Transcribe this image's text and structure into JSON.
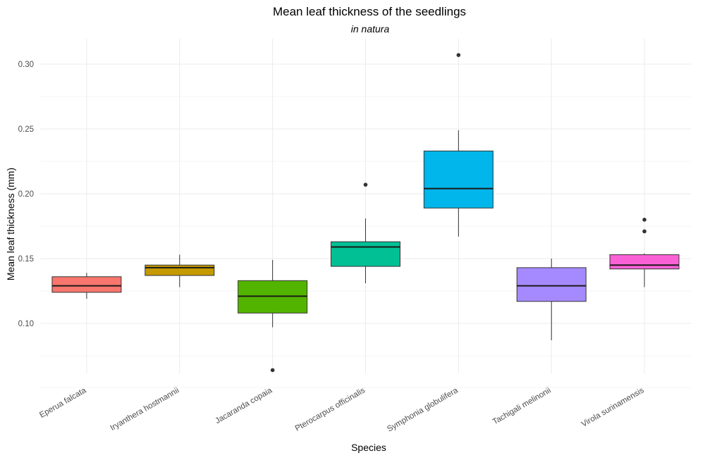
{
  "chart_data": {
    "type": "boxplot",
    "title": "Mean leaf thickness of the seedlings",
    "subtitle": "in natura",
    "xlabel": "Species",
    "ylabel": "Mean leaf thickness (mm)",
    "ylim": [
      0.035,
      0.32
    ],
    "yticks": [
      0.1,
      0.15,
      0.2,
      0.25,
      0.3
    ],
    "ytick_labels": [
      "0.10",
      "0.15",
      "0.20",
      "0.25",
      "0.30"
    ],
    "grid": true,
    "legend": "none",
    "categories": [
      "Eperua falcata",
      "Iryanthera hostmannii",
      "Jacaranda copaia",
      "Pterocarpus officinalis",
      "Symphonia globulifera",
      "Tachigali melinonii",
      "Virola surinamensis"
    ],
    "boxes": [
      {
        "name": "Eperua falcata",
        "whisker_low": 0.119,
        "q1": 0.124,
        "median": 0.129,
        "q3": 0.136,
        "whisker_high": 0.139,
        "outliers": [],
        "color": "#F8766D"
      },
      {
        "name": "Iryanthera hostmannii",
        "whisker_low": 0.128,
        "q1": 0.137,
        "median": 0.143,
        "q3": 0.145,
        "whisker_high": 0.153,
        "outliers": [],
        "color": "#C49A00"
      },
      {
        "name": "Jacaranda copaia",
        "whisker_low": 0.097,
        "q1": 0.108,
        "median": 0.121,
        "q3": 0.133,
        "whisker_high": 0.149,
        "outliers": [
          0.064
        ],
        "color": "#53B400"
      },
      {
        "name": "Pterocarpus officinalis",
        "whisker_low": 0.131,
        "q1": 0.144,
        "median": 0.159,
        "q3": 0.163,
        "whisker_high": 0.181,
        "outliers": [
          0.207
        ],
        "color": "#00C094"
      },
      {
        "name": "Symphonia globulifera",
        "whisker_low": 0.167,
        "q1": 0.189,
        "median": 0.204,
        "q3": 0.233,
        "whisker_high": 0.249,
        "outliers": [
          0.307
        ],
        "color": "#00B6EB"
      },
      {
        "name": "Tachigali melinonii",
        "whisker_low": 0.087,
        "q1": 0.117,
        "median": 0.129,
        "q3": 0.143,
        "whisker_high": 0.15,
        "outliers": [],
        "color": "#A58AFF"
      },
      {
        "name": "Virola surinamensis",
        "whisker_low": 0.128,
        "q1": 0.142,
        "median": 0.145,
        "q3": 0.153,
        "whisker_high": 0.154,
        "outliers": [
          0.171,
          0.18
        ],
        "color": "#FB61D7"
      }
    ]
  }
}
